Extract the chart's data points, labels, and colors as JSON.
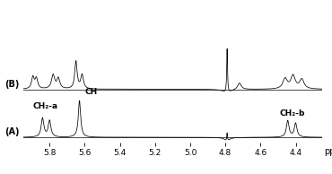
{
  "background_color": "#ffffff",
  "label_A": "(A)",
  "label_B": "(B)",
  "annotation_CH2a": "CH₂-a",
  "annotation_CH": "CH",
  "annotation_CH2b": "CH₂-b",
  "xlabel": "ppm",
  "xlim_left": 5.95,
  "xlim_right": 4.25,
  "ylim_bottom": -0.08,
  "ylim_top": 1.98,
  "baseline_A": 0.0,
  "baseline_B": 0.72,
  "xticks": [
    5.8,
    5.6,
    5.4,
    5.2,
    5.0,
    4.8,
    4.6,
    4.4
  ],
  "tick_labels": [
    "5.8",
    "5.6",
    "5.4",
    "5.2",
    "5.0",
    "4.8",
    "4.6",
    "4.4"
  ]
}
